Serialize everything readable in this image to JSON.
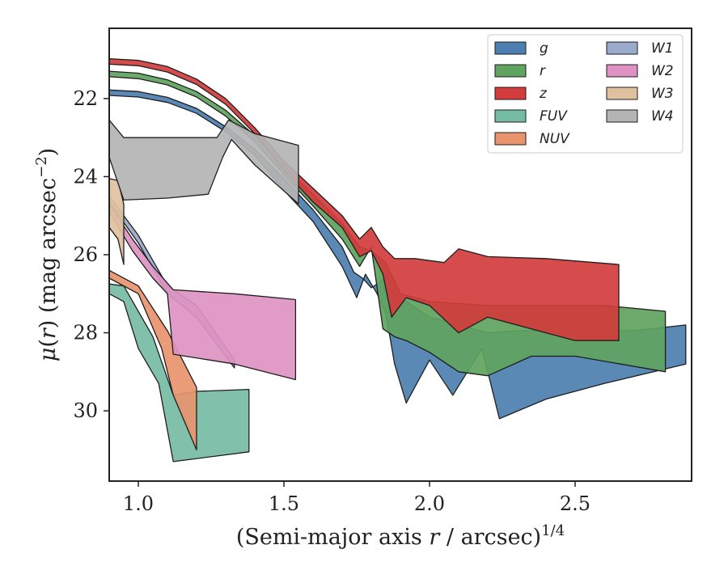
{
  "chart_data": {
    "type": "area",
    "xlabel": "(Semi-major axis r / arcsec)^{1/4}",
    "ylabel": "μ(r) (mag arcsec^{−2})",
    "xlim": [
      0.9,
      2.9
    ],
    "ylim": [
      31.8,
      20.2
    ],
    "y_inverted": true,
    "grid": false,
    "legend_placement": "top-right",
    "legend_columns": 2,
    "x_ticks": [
      "1.0",
      "1.5",
      "2.0",
      "2.5"
    ],
    "y_ticks": [
      "22",
      "24",
      "26",
      "28",
      "30"
    ],
    "series": [
      {
        "name": "g",
        "color": "#4c7fb0",
        "upper": [
          [
            0.9,
            21.78
          ],
          [
            1.0,
            21.82
          ],
          [
            1.1,
            21.97
          ],
          [
            1.2,
            22.25
          ],
          [
            1.3,
            22.72
          ],
          [
            1.4,
            23.3
          ],
          [
            1.5,
            24.05
          ],
          [
            1.6,
            24.85
          ],
          [
            1.7,
            25.8
          ],
          [
            1.74,
            26.45
          ],
          [
            1.77,
            26.6
          ],
          [
            1.8,
            26.85
          ],
          [
            1.85,
            26.6
          ],
          [
            1.9,
            27.1
          ],
          [
            2.0,
            27.6
          ],
          [
            2.1,
            27.8
          ],
          [
            2.2,
            28.0
          ],
          [
            2.3,
            27.95
          ],
          [
            2.5,
            27.95
          ],
          [
            2.7,
            27.95
          ],
          [
            2.88,
            27.8
          ]
        ],
        "lower": [
          [
            0.9,
            21.92
          ],
          [
            1.0,
            21.96
          ],
          [
            1.1,
            22.1
          ],
          [
            1.2,
            22.38
          ],
          [
            1.3,
            22.85
          ],
          [
            1.4,
            23.45
          ],
          [
            1.5,
            24.35
          ],
          [
            1.6,
            25.15
          ],
          [
            1.7,
            26.3
          ],
          [
            1.75,
            27.1
          ],
          [
            1.78,
            26.5
          ],
          [
            1.82,
            27.0
          ],
          [
            1.85,
            27.5
          ],
          [
            1.88,
            28.8
          ],
          [
            1.92,
            29.8
          ],
          [
            2.0,
            28.7
          ],
          [
            2.08,
            29.6
          ],
          [
            2.13,
            29.0
          ],
          [
            2.18,
            28.4
          ],
          [
            2.24,
            30.2
          ],
          [
            2.4,
            29.7
          ],
          [
            2.6,
            29.3
          ],
          [
            2.88,
            28.8
          ]
        ]
      },
      {
        "name": "r",
        "color": "#5fa35f",
        "upper": [
          [
            0.9,
            21.3
          ],
          [
            1.0,
            21.35
          ],
          [
            1.1,
            21.52
          ],
          [
            1.2,
            21.82
          ],
          [
            1.3,
            22.3
          ],
          [
            1.4,
            22.95
          ],
          [
            1.5,
            23.75
          ],
          [
            1.6,
            24.45
          ],
          [
            1.7,
            25.2
          ],
          [
            1.76,
            25.8
          ],
          [
            1.8,
            25.9
          ],
          [
            1.85,
            26.2
          ],
          [
            1.9,
            27.0
          ],
          [
            2.0,
            27.2
          ],
          [
            2.2,
            27.3
          ],
          [
            2.4,
            27.3
          ],
          [
            2.6,
            27.3
          ],
          [
            2.81,
            27.45
          ]
        ],
        "lower": [
          [
            0.9,
            21.44
          ],
          [
            1.0,
            21.49
          ],
          [
            1.1,
            21.65
          ],
          [
            1.2,
            21.96
          ],
          [
            1.3,
            22.45
          ],
          [
            1.4,
            23.1
          ],
          [
            1.5,
            23.95
          ],
          [
            1.6,
            24.75
          ],
          [
            1.7,
            25.6
          ],
          [
            1.76,
            26.3
          ],
          [
            1.8,
            25.8
          ],
          [
            1.84,
            27.9
          ],
          [
            1.88,
            28.1
          ],
          [
            1.92,
            28.2
          ],
          [
            2.0,
            28.5
          ],
          [
            2.1,
            29.0
          ],
          [
            2.2,
            29.1
          ],
          [
            2.35,
            28.6
          ],
          [
            2.5,
            28.6
          ],
          [
            2.81,
            29.0
          ]
        ]
      },
      {
        "name": "z",
        "color": "#d23c3c",
        "upper": [
          [
            0.9,
            20.98
          ],
          [
            1.0,
            21.02
          ],
          [
            1.1,
            21.18
          ],
          [
            1.2,
            21.5
          ],
          [
            1.3,
            22.0
          ],
          [
            1.4,
            22.75
          ],
          [
            1.5,
            23.6
          ],
          [
            1.6,
            24.3
          ],
          [
            1.7,
            25.0
          ],
          [
            1.76,
            25.6
          ],
          [
            1.8,
            25.3
          ],
          [
            1.84,
            25.8
          ],
          [
            1.88,
            26.1
          ],
          [
            1.95,
            26.1
          ],
          [
            2.05,
            26.2
          ],
          [
            2.1,
            25.85
          ],
          [
            2.2,
            26.05
          ],
          [
            2.4,
            26.1
          ],
          [
            2.65,
            26.25
          ]
        ],
        "lower": [
          [
            0.9,
            21.12
          ],
          [
            1.0,
            21.16
          ],
          [
            1.1,
            21.32
          ],
          [
            1.2,
            21.64
          ],
          [
            1.3,
            22.15
          ],
          [
            1.4,
            22.9
          ],
          [
            1.5,
            23.85
          ],
          [
            1.6,
            24.65
          ],
          [
            1.7,
            25.3
          ],
          [
            1.76,
            26.05
          ],
          [
            1.8,
            25.9
          ],
          [
            1.84,
            26.5
          ],
          [
            1.87,
            27.6
          ],
          [
            1.92,
            27.1
          ],
          [
            2.0,
            27.3
          ],
          [
            2.1,
            28.0
          ],
          [
            2.2,
            27.6
          ],
          [
            2.35,
            27.9
          ],
          [
            2.5,
            28.2
          ],
          [
            2.65,
            28.2
          ]
        ]
      },
      {
        "name": "FUV",
        "color": "#76bba4",
        "upper": [
          [
            0.9,
            26.75
          ],
          [
            0.95,
            26.8
          ],
          [
            1.05,
            28.1
          ],
          [
            1.12,
            29.6
          ],
          [
            1.2,
            29.5
          ],
          [
            1.38,
            29.45
          ]
        ],
        "lower": [
          [
            0.9,
            27.0
          ],
          [
            0.95,
            27.2
          ],
          [
            1.0,
            28.4
          ],
          [
            1.07,
            29.3
          ],
          [
            1.12,
            31.3
          ],
          [
            1.38,
            31.05
          ]
        ]
      },
      {
        "name": "NUV",
        "color": "#e8946e",
        "upper": [
          [
            0.9,
            26.4
          ],
          [
            1.0,
            26.8
          ],
          [
            1.1,
            27.95
          ],
          [
            1.2,
            29.4
          ]
        ],
        "lower": [
          [
            0.9,
            26.6
          ],
          [
            1.0,
            27.0
          ],
          [
            1.08,
            28.4
          ],
          [
            1.12,
            29.6
          ],
          [
            1.2,
            31.0
          ]
        ]
      },
      {
        "name": "W1",
        "color": "#9aaacc",
        "upper": [
          [
            0.9,
            24.5
          ],
          [
            1.0,
            25.5
          ],
          [
            1.1,
            26.8
          ],
          [
            1.2,
            27.3
          ],
          [
            1.33,
            28.7
          ]
        ],
        "lower": [
          [
            0.9,
            24.65
          ],
          [
            1.0,
            25.7
          ],
          [
            1.1,
            27.0
          ],
          [
            1.2,
            27.6
          ],
          [
            1.33,
            28.9
          ]
        ]
      },
      {
        "name": "W2",
        "color": "#dd92c2",
        "upper": [
          [
            0.9,
            24.7
          ],
          [
            0.98,
            25.6
          ],
          [
            1.05,
            26.3
          ],
          [
            1.12,
            26.9
          ],
          [
            1.33,
            27.0
          ],
          [
            1.54,
            27.15
          ]
        ],
        "lower": [
          [
            0.9,
            24.9
          ],
          [
            0.98,
            25.9
          ],
          [
            1.05,
            26.6
          ],
          [
            1.1,
            27.0
          ],
          [
            1.12,
            28.55
          ],
          [
            1.33,
            28.8
          ],
          [
            1.54,
            29.2
          ]
        ]
      },
      {
        "name": "W3",
        "color": "#dfc19f",
        "upper": [
          [
            0.9,
            24.05
          ],
          [
            0.93,
            24.1
          ],
          [
            0.95,
            24.7
          ]
        ],
        "lower": [
          [
            0.9,
            25.3
          ],
          [
            0.93,
            25.6
          ],
          [
            0.95,
            26.25
          ]
        ]
      },
      {
        "name": "W4",
        "color": "#b4b4b4",
        "upper": [
          [
            0.9,
            22.55
          ],
          [
            0.95,
            23.0
          ],
          [
            1.1,
            23.0
          ],
          [
            1.27,
            23.0
          ],
          [
            1.31,
            22.55
          ],
          [
            1.4,
            22.9
          ],
          [
            1.55,
            23.2
          ]
        ],
        "lower": [
          [
            0.9,
            23.5
          ],
          [
            0.95,
            24.6
          ],
          [
            1.1,
            24.55
          ],
          [
            1.24,
            24.45
          ],
          [
            1.29,
            23.5
          ],
          [
            1.32,
            23.05
          ],
          [
            1.4,
            23.7
          ],
          [
            1.55,
            24.7
          ]
        ]
      }
    ]
  }
}
